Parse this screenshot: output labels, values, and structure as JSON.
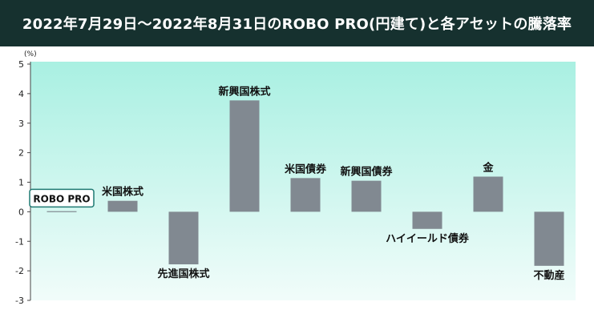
{
  "header": {
    "title": "2022年7月29日〜2022年8月31日のROBO PRO(円建て)と各アセットの騰落率"
  },
  "colors": {
    "title_background": "#16312f",
    "bar": "#818991",
    "plot_gradient_top": "#a9f0e2",
    "plot_gradient_bottom": "#f1fcfa",
    "robo_box_border": "#1f7a73"
  },
  "chart_data": {
    "type": "bar",
    "title": "2022年7月29日〜2022年8月31日のROBO PRO(円建て)と各アセットの騰落率",
    "ylabel": "(%)",
    "ylim": [
      -3,
      5
    ],
    "yticks": [
      "5",
      "4",
      "3",
      "2",
      "1",
      "0",
      "-1",
      "-2",
      "-3"
    ],
    "grid": false,
    "categories": [
      "ROBO PRO",
      "米国株式",
      "先進国株式",
      "新興国株式",
      "米国債券",
      "新興国債券",
      "ハイイールド債券",
      "金",
      "不動産"
    ],
    "values": [
      0.02,
      0.37,
      -1.78,
      3.77,
      1.14,
      1.05,
      -0.58,
      1.19,
      -1.83
    ]
  }
}
